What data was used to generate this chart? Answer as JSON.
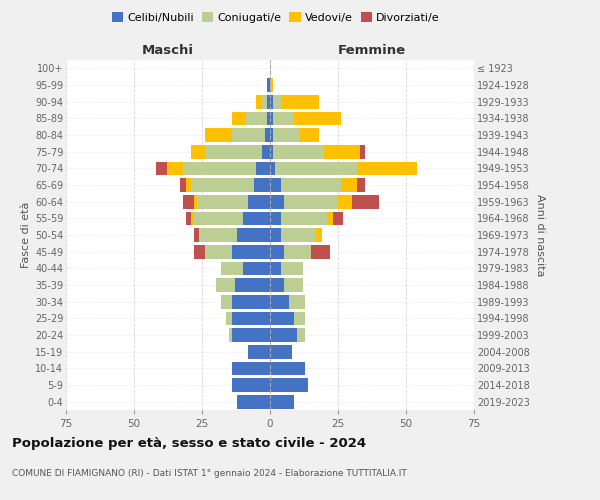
{
  "age_groups": [
    "0-4",
    "5-9",
    "10-14",
    "15-19",
    "20-24",
    "25-29",
    "30-34",
    "35-39",
    "40-44",
    "45-49",
    "50-54",
    "55-59",
    "60-64",
    "65-69",
    "70-74",
    "75-79",
    "80-84",
    "85-89",
    "90-94",
    "95-99",
    "100+"
  ],
  "birth_years": [
    "2019-2023",
    "2014-2018",
    "2009-2013",
    "2004-2008",
    "1999-2003",
    "1994-1998",
    "1989-1993",
    "1984-1988",
    "1979-1983",
    "1974-1978",
    "1969-1973",
    "1964-1968",
    "1959-1963",
    "1954-1958",
    "1949-1953",
    "1944-1948",
    "1939-1943",
    "1934-1938",
    "1929-1933",
    "1924-1928",
    "≤ 1923"
  ],
  "maschi": {
    "celibi": [
      12,
      14,
      14,
      8,
      14,
      14,
      14,
      13,
      10,
      14,
      12,
      10,
      8,
      6,
      5,
      3,
      2,
      1,
      1,
      1,
      0
    ],
    "coniugati": [
      0,
      0,
      0,
      0,
      1,
      2,
      4,
      7,
      8,
      10,
      14,
      18,
      19,
      23,
      27,
      21,
      12,
      8,
      2,
      0,
      0
    ],
    "vedovi": [
      0,
      0,
      0,
      0,
      0,
      0,
      0,
      0,
      0,
      0,
      0,
      1,
      1,
      2,
      6,
      5,
      10,
      5,
      2,
      0,
      0
    ],
    "divorziati": [
      0,
      0,
      0,
      0,
      0,
      0,
      0,
      0,
      0,
      4,
      2,
      2,
      4,
      2,
      4,
      0,
      0,
      0,
      0,
      0,
      0
    ]
  },
  "femmine": {
    "nubili": [
      9,
      14,
      13,
      8,
      10,
      9,
      7,
      5,
      4,
      5,
      4,
      4,
      5,
      4,
      2,
      1,
      1,
      1,
      1,
      0,
      0
    ],
    "coniugate": [
      0,
      0,
      0,
      0,
      3,
      4,
      6,
      7,
      8,
      10,
      13,
      17,
      20,
      22,
      30,
      19,
      10,
      8,
      3,
      0,
      0
    ],
    "vedove": [
      0,
      0,
      0,
      0,
      0,
      0,
      0,
      0,
      0,
      0,
      2,
      2,
      5,
      6,
      22,
      13,
      7,
      17,
      14,
      1,
      0
    ],
    "divorziate": [
      0,
      0,
      0,
      0,
      0,
      0,
      0,
      0,
      0,
      7,
      0,
      4,
      10,
      3,
      0,
      2,
      0,
      0,
      0,
      0,
      0
    ]
  },
  "colors": {
    "celibi": "#4472C4",
    "coniugati": "#BCCE93",
    "vedovi": "#FFC000",
    "divorziati": "#C0504D"
  },
  "title": "Popolazione per età, sesso e stato civile - 2024",
  "subtitle": "COMUNE DI FIAMIGNANO (RI) - Dati ISTAT 1° gennaio 2024 - Elaborazione TUTTITALIA.IT",
  "xlabel_left": "Maschi",
  "xlabel_right": "Femmine",
  "ylabel_left": "Fasce di età",
  "ylabel_right": "Anni di nascita",
  "xlim": 75,
  "bg_color": "#f0f0f0",
  "plot_bg": "#ffffff",
  "legend_labels": [
    "Celibi/Nubili",
    "Coniugati/e",
    "Vedovi/e",
    "Divorziati/e"
  ]
}
